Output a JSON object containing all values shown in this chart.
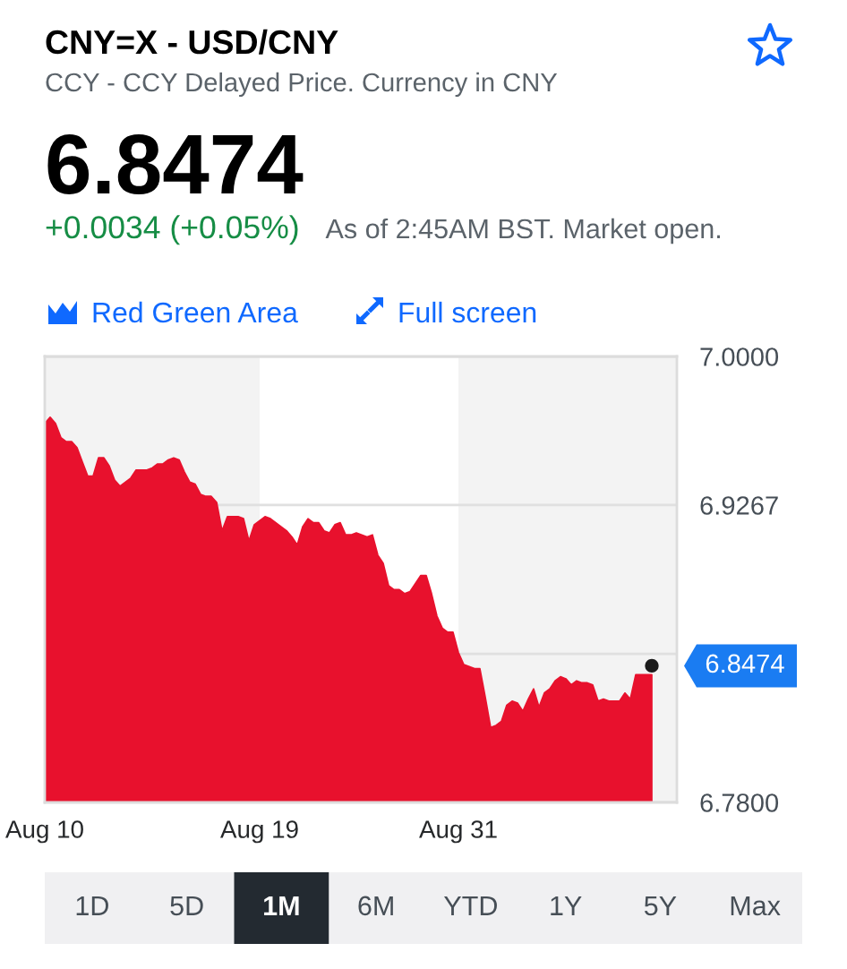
{
  "chart_data": {
    "type": "area",
    "title": "CNY=X - USD/CNY",
    "subtitle": "CCY - CCY Delayed Price. Currency in CNY",
    "categories": [
      "Aug 10",
      null,
      null,
      null,
      null,
      null,
      null,
      null,
      null,
      null,
      null,
      null,
      null,
      null,
      null,
      null,
      null,
      null,
      null,
      null,
      null,
      null,
      null,
      null,
      null,
      null,
      null,
      null,
      null,
      null,
      null,
      null,
      null,
      null,
      null,
      null,
      null,
      null,
      null,
      null,
      "Aug 19",
      null,
      null,
      null,
      null,
      null,
      null,
      null,
      null,
      null,
      null,
      null,
      null,
      null,
      null,
      null,
      null,
      null,
      null,
      null,
      null,
      null,
      null,
      null,
      null,
      null,
      null,
      null,
      null,
      null,
      null,
      null,
      null,
      null,
      null,
      null,
      null,
      "Aug 31",
      null,
      null,
      null,
      null,
      null,
      null,
      null,
      null,
      null,
      null,
      null,
      null,
      null,
      null,
      null,
      null,
      null,
      null,
      null,
      null,
      null,
      null,
      null,
      null,
      null,
      null,
      null,
      null,
      null,
      null,
      null,
      null,
      null,
      null,
      null,
      null
    ],
    "series": [
      {
        "color": "#e8112d",
        "values": [
          6.967,
          6.97,
          6.967,
          6.96,
          6.958,
          6.958,
          6.955,
          6.948,
          6.941,
          6.941,
          6.95,
          6.95,
          6.946,
          6.939,
          6.936,
          6.938,
          6.94,
          6.944,
          6.944,
          6.944,
          6.945,
          6.947,
          6.947,
          6.949,
          6.95,
          6.949,
          6.943,
          6.938,
          6.937,
          6.932,
          6.931,
          6.931,
          6.928,
          6.914,
          6.921,
          6.921,
          6.921,
          6.92,
          6.909,
          6.917,
          6.919,
          6.921,
          6.92,
          6.918,
          6.916,
          6.914,
          6.911,
          6.907,
          6.916,
          6.92,
          6.918,
          6.918,
          6.914,
          6.913,
          6.917,
          6.918,
          6.912,
          6.912,
          6.913,
          6.912,
          6.911,
          6.912,
          6.902,
          6.898,
          6.887,
          6.885,
          6.885,
          6.883,
          6.884,
          6.888,
          6.892,
          6.892,
          6.883,
          6.872,
          6.866,
          6.864,
          6.864,
          6.854,
          6.848,
          6.847,
          6.846,
          6.846,
          6.832,
          6.817,
          6.818,
          6.82,
          6.828,
          6.83,
          6.829,
          6.825,
          6.831,
          6.836,
          6.827,
          6.834,
          6.836,
          6.84,
          6.842,
          6.841,
          6.838,
          6.84,
          6.839,
          6.839,
          6.838,
          6.83,
          6.831,
          6.83,
          6.83,
          6.83,
          6.834,
          6.831,
          6.843,
          6.843,
          6.843,
          6.843
        ]
      },
      {
        "type": "scatter",
        "color": "#1b1b1b",
        "values": [
          null,
          null,
          null,
          null,
          null,
          null,
          null,
          null,
          null,
          null,
          null,
          null,
          null,
          null,
          null,
          null,
          null,
          null,
          null,
          null,
          null,
          null,
          null,
          null,
          null,
          null,
          null,
          null,
          null,
          null,
          null,
          null,
          null,
          null,
          null,
          null,
          null,
          null,
          null,
          null,
          null,
          null,
          null,
          null,
          null,
          null,
          null,
          null,
          null,
          null,
          null,
          null,
          null,
          null,
          null,
          null,
          null,
          null,
          null,
          null,
          null,
          null,
          null,
          null,
          null,
          null,
          null,
          null,
          null,
          null,
          null,
          null,
          null,
          null,
          null,
          null,
          null,
          null,
          null,
          null,
          null,
          null,
          null,
          null,
          null,
          null,
          null,
          null,
          null,
          null,
          null,
          null,
          null,
          null,
          null,
          null,
          null,
          null,
          null,
          null,
          null,
          null,
          null,
          null,
          null,
          null,
          null,
          null,
          null,
          null,
          null,
          null,
          null,
          6.8474
        ],
        "value_labels": [
          null,
          null,
          null,
          null,
          null,
          null,
          null,
          null,
          null,
          null,
          null,
          null,
          null,
          null,
          null,
          null,
          null,
          null,
          null,
          null,
          null,
          null,
          null,
          null,
          null,
          null,
          null,
          null,
          null,
          null,
          null,
          null,
          null,
          null,
          null,
          null,
          null,
          null,
          null,
          null,
          null,
          null,
          null,
          null,
          null,
          null,
          null,
          null,
          null,
          null,
          null,
          null,
          null,
          null,
          null,
          null,
          null,
          null,
          null,
          null,
          null,
          null,
          null,
          null,
          null,
          null,
          null,
          null,
          null,
          null,
          null,
          null,
          null,
          null,
          null,
          null,
          null,
          null,
          null,
          null,
          null,
          null,
          null,
          null,
          null,
          null,
          null,
          null,
          null,
          null,
          null,
          null,
          null,
          null,
          null,
          null,
          null,
          null,
          null,
          null,
          null,
          null,
          null,
          null,
          null,
          null,
          null,
          null,
          null,
          null,
          null,
          null,
          null,
          "6.8474"
        ]
      }
    ],
    "ylim": [
      6.78,
      7.0
    ],
    "yticks": [
      {
        "value": 7.0,
        "label": "7.0000"
      },
      {
        "value": 6.9267,
        "label": "6.9267"
      },
      {
        "value": 6.8533,
        "label": null
      },
      {
        "value": 6.78,
        "label": "6.7800"
      }
    ],
    "grid": "y",
    "bands": [
      {
        "axis": "x",
        "from": "Aug 19",
        "to": "Aug 31",
        "color": "#ffffff"
      }
    ],
    "annotations": [
      "6.8474",
      "+0.0034 (+0.05%)",
      "As of 2:45AM BST. Market open.",
      "Red Green Area",
      "Full screen",
      "1D",
      "5D",
      "1M",
      "6M",
      "YTD",
      "1Y",
      "5Y",
      "Max"
    ]
  }
}
